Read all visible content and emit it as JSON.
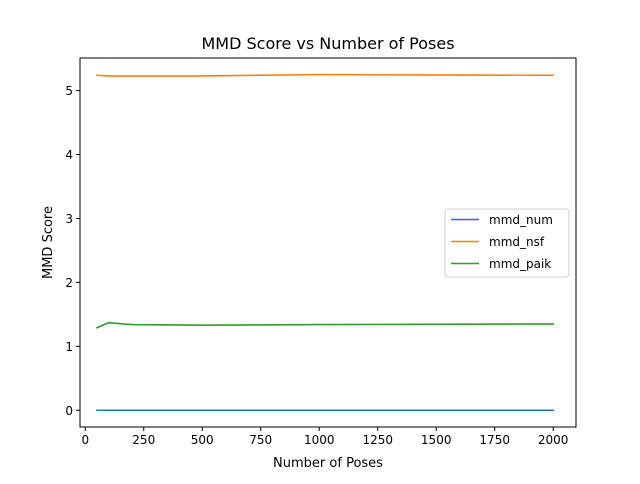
{
  "chart_data": {
    "type": "line",
    "title": "MMD Score vs Number of Poses",
    "xlabel": "Number of Poses",
    "ylabel": "MMD Score",
    "xlim": [
      -22.5,
      2097.5
    ],
    "ylim": [
      -0.262,
      5.51
    ],
    "xticks": [
      0,
      250,
      500,
      750,
      1000,
      1250,
      1500,
      1750,
      2000
    ],
    "xtick_labels": [
      "0",
      "250",
      "500",
      "750",
      "1000",
      "1250",
      "1500",
      "1750",
      "2000"
    ],
    "yticks": [
      0,
      1,
      2,
      3,
      4,
      5
    ],
    "ytick_labels": [
      "0",
      "1",
      "2",
      "3",
      "4",
      "5"
    ],
    "grid": false,
    "legend_position": "center-right",
    "series": [
      {
        "name": "mmd_num",
        "color": "#1f77b4",
        "x": [
          50,
          100,
          200,
          500,
          1000,
          2000
        ],
        "values": [
          0.0,
          0.0,
          0.0,
          0.0,
          0.0,
          0.0
        ]
      },
      {
        "name": "mmd_nsf",
        "color": "#ff7f0e",
        "x": [
          50,
          100,
          200,
          500,
          1000,
          2000
        ],
        "values": [
          5.24,
          5.23,
          5.23,
          5.23,
          5.25,
          5.24
        ]
      },
      {
        "name": "mmd_paik",
        "color": "#2ca02c",
        "x": [
          50,
          100,
          200,
          500,
          1000,
          2000
        ],
        "values": [
          1.29,
          1.37,
          1.34,
          1.33,
          1.34,
          1.35
        ]
      }
    ]
  }
}
